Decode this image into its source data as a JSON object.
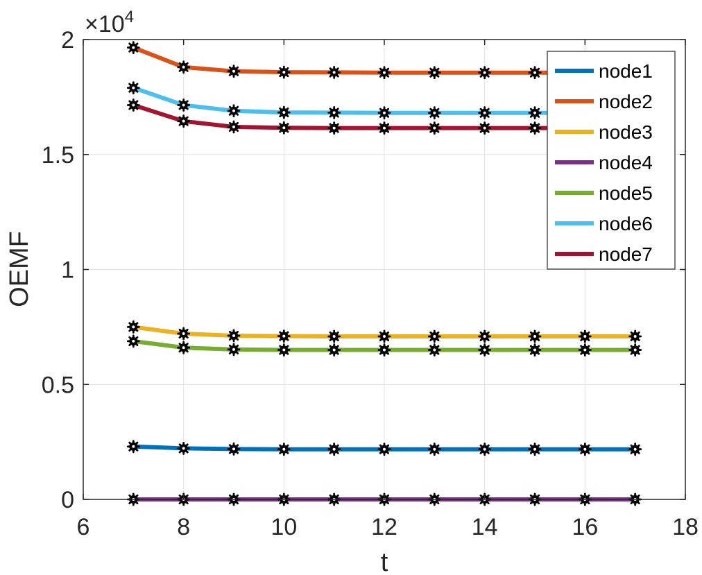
{
  "chart_data": {
    "type": "line",
    "title": "",
    "xlabel": "t",
    "ylabel": "OEMF",
    "y_scale_label": "×10",
    "y_scale_exponent": "4",
    "xlim": [
      6,
      18
    ],
    "ylim": [
      0,
      20000
    ],
    "xticks": [
      6,
      8,
      10,
      12,
      14,
      16,
      18
    ],
    "yticks": [
      0,
      5000,
      10000,
      15000,
      20000
    ],
    "ytick_labels": [
      "0",
      "0.5",
      "1",
      "1.5",
      "2"
    ],
    "grid": true,
    "legend_position": "top-right",
    "x": [
      7,
      8,
      9,
      10,
      11,
      12,
      13,
      14,
      15,
      16,
      17
    ],
    "series": [
      {
        "name": "node1",
        "color": "#0072BD",
        "values": [
          2300,
          2220,
          2190,
          2180,
          2180,
          2180,
          2180,
          2180,
          2180,
          2180,
          2180
        ]
      },
      {
        "name": "node2",
        "color": "#D95319",
        "values": [
          19650,
          18800,
          18620,
          18580,
          18570,
          18560,
          18560,
          18560,
          18560,
          18560,
          18560
        ]
      },
      {
        "name": "node3",
        "color": "#EDB120",
        "values": [
          7500,
          7210,
          7120,
          7100,
          7090,
          7090,
          7090,
          7090,
          7090,
          7090,
          7090
        ]
      },
      {
        "name": "node4",
        "color": "#7E2F8E",
        "values": [
          0,
          0,
          0,
          0,
          0,
          0,
          0,
          0,
          0,
          0,
          0
        ]
      },
      {
        "name": "node5",
        "color": "#77AC30",
        "values": [
          6880,
          6600,
          6520,
          6500,
          6500,
          6500,
          6500,
          6500,
          6500,
          6500,
          6500
        ]
      },
      {
        "name": "node6",
        "color": "#4DBEEE",
        "values": [
          17900,
          17150,
          16900,
          16830,
          16820,
          16810,
          16810,
          16810,
          16810,
          16810,
          16810
        ]
      },
      {
        "name": "node7",
        "color": "#A2142F",
        "values": [
          17150,
          16450,
          16200,
          16160,
          16150,
          16150,
          16150,
          16150,
          16150,
          16150,
          16150
        ]
      }
    ]
  }
}
